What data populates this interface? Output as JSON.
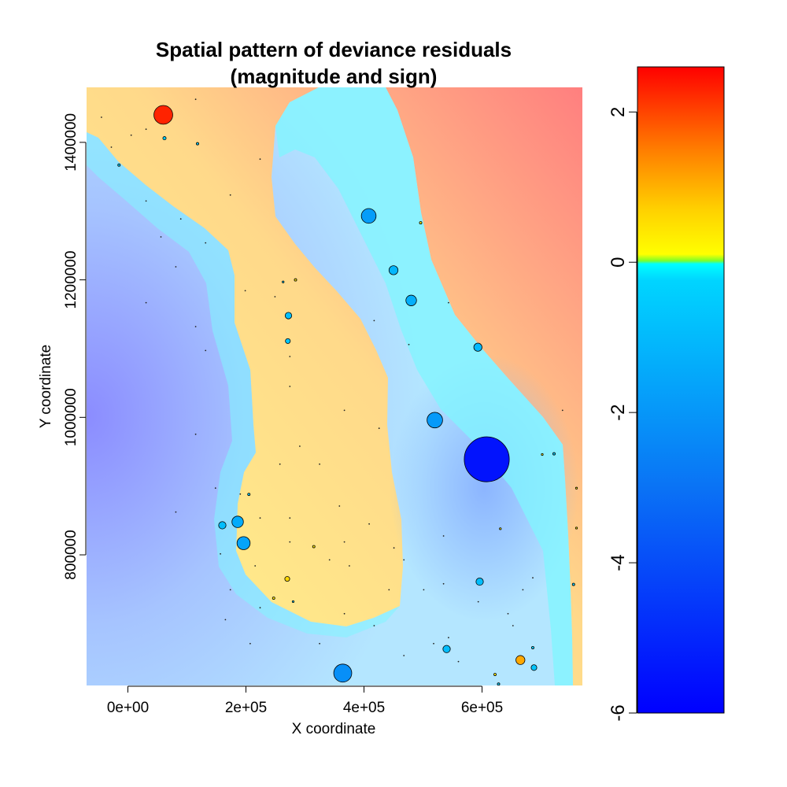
{
  "chart_data": {
    "type": "scatter",
    "title": "Spatial pattern of  deviance residuals",
    "subtitle": "(magnitude and sign)",
    "xlabel": "X coordinate",
    "ylabel": "Y coordinate",
    "xlim": [
      -70000,
      770000
    ],
    "ylim": [
      610000,
      1480000
    ],
    "x_ticks": [
      {
        "value": 0,
        "label": "0e+00"
      },
      {
        "value": 200000,
        "label": "2e+05"
      },
      {
        "value": 400000,
        "label": "4e+05"
      },
      {
        "value": 600000,
        "label": "6e+05"
      }
    ],
    "y_ticks": [
      {
        "value": 800000,
        "label": "800000"
      },
      {
        "value": 1000000,
        "label": "1000000"
      },
      {
        "value": 1200000,
        "label": "1200000"
      },
      {
        "value": 1400000,
        "label": "1400000"
      }
    ],
    "colorbar": {
      "range": [
        -6,
        2.6
      ],
      "ticks": [
        {
          "value": 2,
          "label": "2"
        },
        {
          "value": 0,
          "label": "0"
        },
        {
          "value": -2,
          "label": "-2"
        },
        {
          "value": -4,
          "label": "-4"
        },
        {
          "value": -6,
          "label": "-6"
        }
      ]
    },
    "points": [
      {
        "x": 60000,
        "y": 1440000,
        "residual": 2.3
      },
      {
        "x": 62000,
        "y": 1406000,
        "residual": -0.4
      },
      {
        "x": 118000,
        "y": 1398000,
        "residual": -0.3
      },
      {
        "x": -15000,
        "y": 1367000,
        "residual": -0.3
      },
      {
        "x": 408000,
        "y": 1293000,
        "residual": -1.8
      },
      {
        "x": 496000,
        "y": 1283000,
        "residual": 0.3
      },
      {
        "x": 450000,
        "y": 1214000,
        "residual": -1.1
      },
      {
        "x": 284000,
        "y": 1200000,
        "residual": 0.3
      },
      {
        "x": 263000,
        "y": 1197000,
        "residual": -0.2
      },
      {
        "x": 480000,
        "y": 1170000,
        "residual": -1.3
      },
      {
        "x": 272000,
        "y": 1148000,
        "residual": -0.8
      },
      {
        "x": 271000,
        "y": 1111000,
        "residual": -0.6
      },
      {
        "x": 593000,
        "y": 1102000,
        "residual": -1.0
      },
      {
        "x": 520000,
        "y": 996000,
        "residual": -1.9
      },
      {
        "x": 608000,
        "y": 939000,
        "residual": -5.5
      },
      {
        "x": 722000,
        "y": 947000,
        "residual": -0.3
      },
      {
        "x": 702000,
        "y": 946000,
        "residual": 0.2
      },
      {
        "x": 760000,
        "y": 897000,
        "residual": 0.2
      },
      {
        "x": 205000,
        "y": 888000,
        "residual": -0.3
      },
      {
        "x": 186000,
        "y": 848000,
        "residual": -1.4
      },
      {
        "x": 160000,
        "y": 843000,
        "residual": -0.9
      },
      {
        "x": 196000,
        "y": 817000,
        "residual": -1.6
      },
      {
        "x": 631000,
        "y": 838000,
        "residual": 0.2
      },
      {
        "x": 760000,
        "y": 839000,
        "residual": 0.2
      },
      {
        "x": 315000,
        "y": 812000,
        "residual": 0.3
      },
      {
        "x": 270000,
        "y": 765000,
        "residual": 0.6
      },
      {
        "x": 596000,
        "y": 761000,
        "residual": -0.9
      },
      {
        "x": 755000,
        "y": 757000,
        "residual": -0.3
      },
      {
        "x": 247000,
        "y": 737000,
        "residual": 0.3
      },
      {
        "x": 280000,
        "y": 732000,
        "residual": -0.2
      },
      {
        "x": 540000,
        "y": 663000,
        "residual": -0.9
      },
      {
        "x": 665000,
        "y": 647000,
        "residual": 1.1
      },
      {
        "x": 686000,
        "y": 665000,
        "residual": -0.3
      },
      {
        "x": 688000,
        "y": 636000,
        "residual": -0.7
      },
      {
        "x": 364000,
        "y": 628000,
        "residual": -2.2
      },
      {
        "x": 622000,
        "y": 626000,
        "residual": 0.3
      },
      {
        "x": 628000,
        "y": 612000,
        "residual": -0.3
      }
    ]
  }
}
